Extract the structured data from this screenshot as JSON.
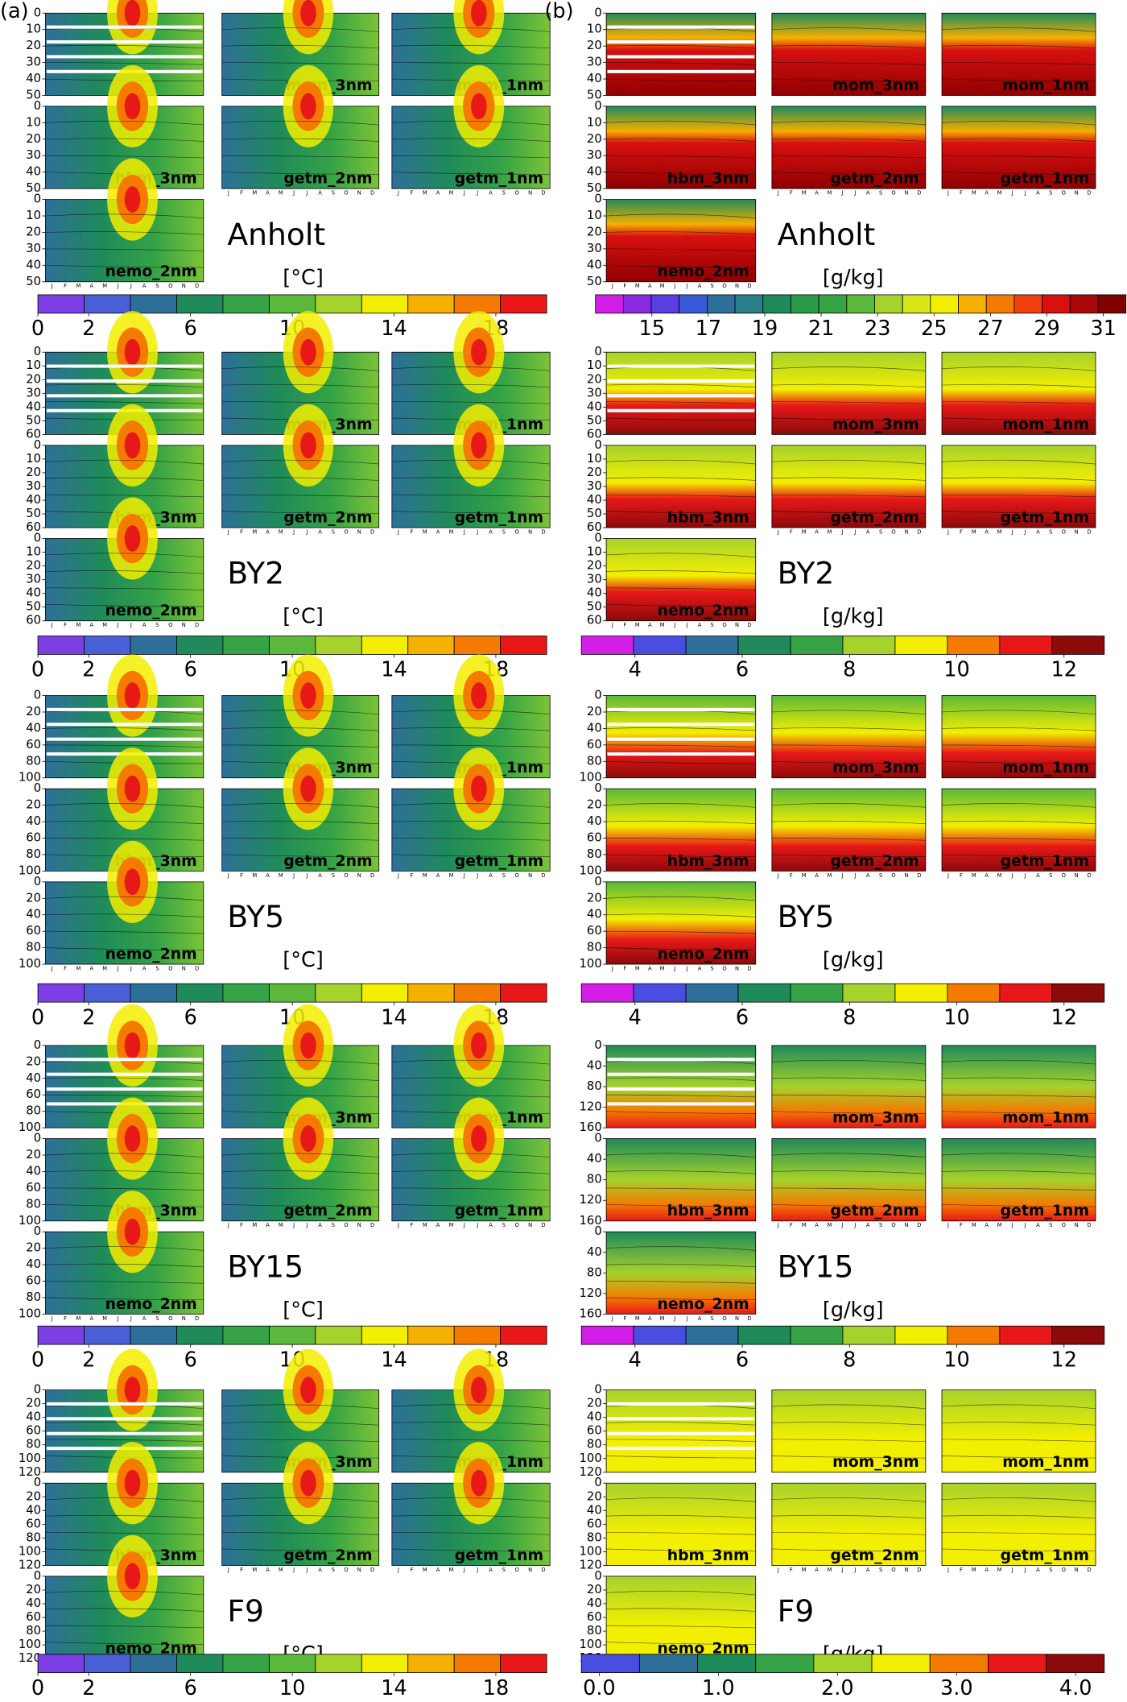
{
  "figure": {
    "months": [
      "J",
      "F",
      "M",
      "A",
      "M",
      "J",
      "J",
      "A",
      "S",
      "O",
      "N",
      "D"
    ],
    "panels": [
      {
        "label": "(a)",
        "blocks": [
          {
            "station": "Anholt",
            "unit": "[°C]",
            "ylim": [
              0,
              50
            ],
            "depth_ticks": [
              0,
              10,
              20,
              30,
              40,
              50
            ],
            "models": [
              "mom_3nm",
              "mom_1nm",
              "hbm_3nm",
              "getm_2nm",
              "getm_1nm",
              "nemo_2nm"
            ],
            "colorbar": {
              "lim": [
                0,
                20
              ],
              "ticks": [
                0,
                2,
                6,
                10,
                14,
                18
              ],
              "colors": [
                "#7b3fe4",
                "#4a5fd6",
                "#2e6f9a",
                "#1f8a5a",
                "#35a346",
                "#5cb83a",
                "#a6d22c",
                "#f3ef00",
                "#f5b000",
                "#f57a00",
                "#e81818"
              ]
            }
          },
          {
            "station": "BY2",
            "unit": "[°C]",
            "ylim": [
              0,
              60
            ],
            "depth_ticks": [
              0,
              10,
              20,
              30,
              40,
              50,
              60
            ],
            "models": [
              "mom_3nm",
              "mom_1nm",
              "hbm_3nm",
              "getm_2nm",
              "getm_1nm",
              "nemo_2nm"
            ],
            "colorbar": {
              "lim": [
                0,
                20
              ],
              "ticks": [
                0,
                2,
                6,
                10,
                14,
                18
              ],
              "colors": [
                "#7b3fe4",
                "#4a5fd6",
                "#2e6f9a",
                "#1f8a5a",
                "#35a346",
                "#5cb83a",
                "#a6d22c",
                "#f3ef00",
                "#f5b000",
                "#f57a00",
                "#e81818"
              ]
            }
          },
          {
            "station": "BY5",
            "unit": "[°C]",
            "ylim": [
              0,
              100
            ],
            "depth_ticks": [
              0,
              20,
              40,
              60,
              80,
              100
            ],
            "models": [
              "mom_3nm",
              "mom_1nm",
              "hbm_3nm",
              "getm_2nm",
              "getm_1nm",
              "nemo_2nm"
            ],
            "colorbar": {
              "lim": [
                0,
                20
              ],
              "ticks": [
                0,
                2,
                6,
                10,
                14,
                18
              ],
              "colors": [
                "#7b3fe4",
                "#4a5fd6",
                "#2e6f9a",
                "#1f8a5a",
                "#35a346",
                "#5cb83a",
                "#a6d22c",
                "#f3ef00",
                "#f5b000",
                "#f57a00",
                "#e81818"
              ]
            }
          },
          {
            "station": "BY15",
            "unit": "[°C]",
            "ylim": [
              0,
              100
            ],
            "depth_ticks": [
              0,
              20,
              40,
              60,
              80,
              100
            ],
            "models": [
              "mom_3nm",
              "mom_1nm",
              "hbm_3nm",
              "getm_2nm",
              "getm_1nm",
              "nemo_2nm"
            ],
            "colorbar": {
              "lim": [
                0,
                20
              ],
              "ticks": [
                0,
                2,
                6,
                10,
                14,
                18
              ],
              "colors": [
                "#7b3fe4",
                "#4a5fd6",
                "#2e6f9a",
                "#1f8a5a",
                "#35a346",
                "#5cb83a",
                "#a6d22c",
                "#f3ef00",
                "#f5b000",
                "#f57a00",
                "#e81818"
              ]
            }
          },
          {
            "station": "F9",
            "unit": "[°C]",
            "ylim": [
              0,
              120
            ],
            "depth_ticks": [
              0,
              20,
              40,
              60,
              80,
              100,
              120
            ],
            "models": [
              "mom_3nm",
              "mom_1nm",
              "hbm_3nm",
              "getm_2nm",
              "getm_1nm",
              "nemo_2nm"
            ],
            "colorbar": {
              "lim": [
                0,
                20
              ],
              "ticks": [
                0,
                2,
                6,
                10,
                14,
                18
              ],
              "colors": [
                "#7b3fe4",
                "#4a5fd6",
                "#2e6f9a",
                "#1f8a5a",
                "#35a346",
                "#5cb83a",
                "#a6d22c",
                "#f3ef00",
                "#f5b000",
                "#f57a00",
                "#e81818"
              ]
            }
          }
        ]
      },
      {
        "label": "(b)",
        "blocks": [
          {
            "station": "Anholt",
            "unit": "[g/kg]",
            "ylim": [
              0,
              50
            ],
            "depth_ticks": [
              0,
              10,
              20,
              30,
              40,
              50
            ],
            "models": [
              "mom_3nm",
              "mom_1nm",
              "hbm_3nm",
              "getm_2nm",
              "getm_1nm",
              "nemo_2nm"
            ],
            "colorbar": {
              "lim": [
                13,
                31.8
              ],
              "ticks": [
                15,
                17,
                19,
                21,
                23,
                25,
                27,
                29,
                31
              ],
              "colors": [
                "#d21ee6",
                "#8a2be2",
                "#5a3ee0",
                "#3a5ad8",
                "#2e6f9a",
                "#2a7f8a",
                "#1f8a5a",
                "#2a9a48",
                "#35a346",
                "#5cb83a",
                "#a6d22c",
                "#d8e61a",
                "#f3ef00",
                "#f5b000",
                "#f57a00",
                "#f04010",
                "#d81010",
                "#a80808",
                "#800000"
              ]
            }
          },
          {
            "station": "BY2",
            "unit": "[g/kg]",
            "ylim": [
              0,
              60
            ],
            "depth_ticks": [
              0,
              10,
              20,
              30,
              40,
              50,
              60
            ],
            "models": [
              "mom_3nm",
              "mom_1nm",
              "hbm_3nm",
              "getm_2nm",
              "getm_1nm",
              "nemo_2nm"
            ],
            "colorbar": {
              "lim": [
                3,
                12.75
              ],
              "ticks": [
                4,
                6,
                8,
                10,
                12
              ],
              "colors": [
                "#d21ee6",
                "#4a4ee0",
                "#2e6f9a",
                "#1f8a5a",
                "#35a346",
                "#a6d22c",
                "#f3ef00",
                "#f57a00",
                "#e81818",
                "#8b0a0a"
              ]
            }
          },
          {
            "station": "BY5",
            "unit": "[g/kg]",
            "ylim": [
              0,
              100
            ],
            "depth_ticks": [
              0,
              20,
              40,
              60,
              80,
              100
            ],
            "models": [
              "mom_3nm",
              "mom_1nm",
              "hbm_3nm",
              "getm_2nm",
              "getm_1nm",
              "nemo_2nm"
            ],
            "colorbar": {
              "lim": [
                3,
                12.75
              ],
              "ticks": [
                4,
                6,
                8,
                10,
                12
              ],
              "colors": [
                "#d21ee6",
                "#4a4ee0",
                "#2e6f9a",
                "#1f8a5a",
                "#35a346",
                "#a6d22c",
                "#f3ef00",
                "#f57a00",
                "#e81818",
                "#8b0a0a"
              ]
            }
          },
          {
            "station": "BY15",
            "unit": "[g/kg]",
            "ylim": [
              0,
              160
            ],
            "depth_ticks": [
              0,
              40,
              80,
              120,
              160
            ],
            "models": [
              "mom_3nm",
              "mom_1nm",
              "hbm_3nm",
              "getm_2nm",
              "getm_1nm",
              "nemo_2nm"
            ],
            "colorbar": {
              "lim": [
                3,
                12.75
              ],
              "ticks": [
                4,
                6,
                8,
                10,
                12
              ],
              "colors": [
                "#d21ee6",
                "#4a4ee0",
                "#2e6f9a",
                "#1f8a5a",
                "#35a346",
                "#a6d22c",
                "#f3ef00",
                "#f57a00",
                "#e81818",
                "#8b0a0a"
              ]
            }
          },
          {
            "station": "F9",
            "unit": "[g/kg]",
            "ylim": [
              0,
              120
            ],
            "depth_ticks": [
              0,
              20,
              40,
              60,
              80,
              100,
              120
            ],
            "models": [
              "mom_3nm",
              "mom_1nm",
              "hbm_3nm",
              "getm_2nm",
              "getm_1nm",
              "nemo_2nm"
            ],
            "colorbar": {
              "lim": [
                -0.15,
                4.24
              ],
              "ticks": [
                {
                  "value": 0,
                  "label": "0.0"
                },
                {
                  "value": 1,
                  "label": "1.0"
                },
                {
                  "value": 2,
                  "label": "2.0"
                },
                {
                  "value": 3,
                  "label": "3.0"
                },
                {
                  "value": 4,
                  "label": "4.0"
                }
              ],
              "colors": [
                "#4a4ee0",
                "#2e6f9a",
                "#1f8a5a",
                "#35a346",
                "#a6d22c",
                "#f3ef00",
                "#f57a00",
                "#e81818",
                "#8b0a0a"
              ]
            }
          }
        ]
      }
    ]
  }
}
